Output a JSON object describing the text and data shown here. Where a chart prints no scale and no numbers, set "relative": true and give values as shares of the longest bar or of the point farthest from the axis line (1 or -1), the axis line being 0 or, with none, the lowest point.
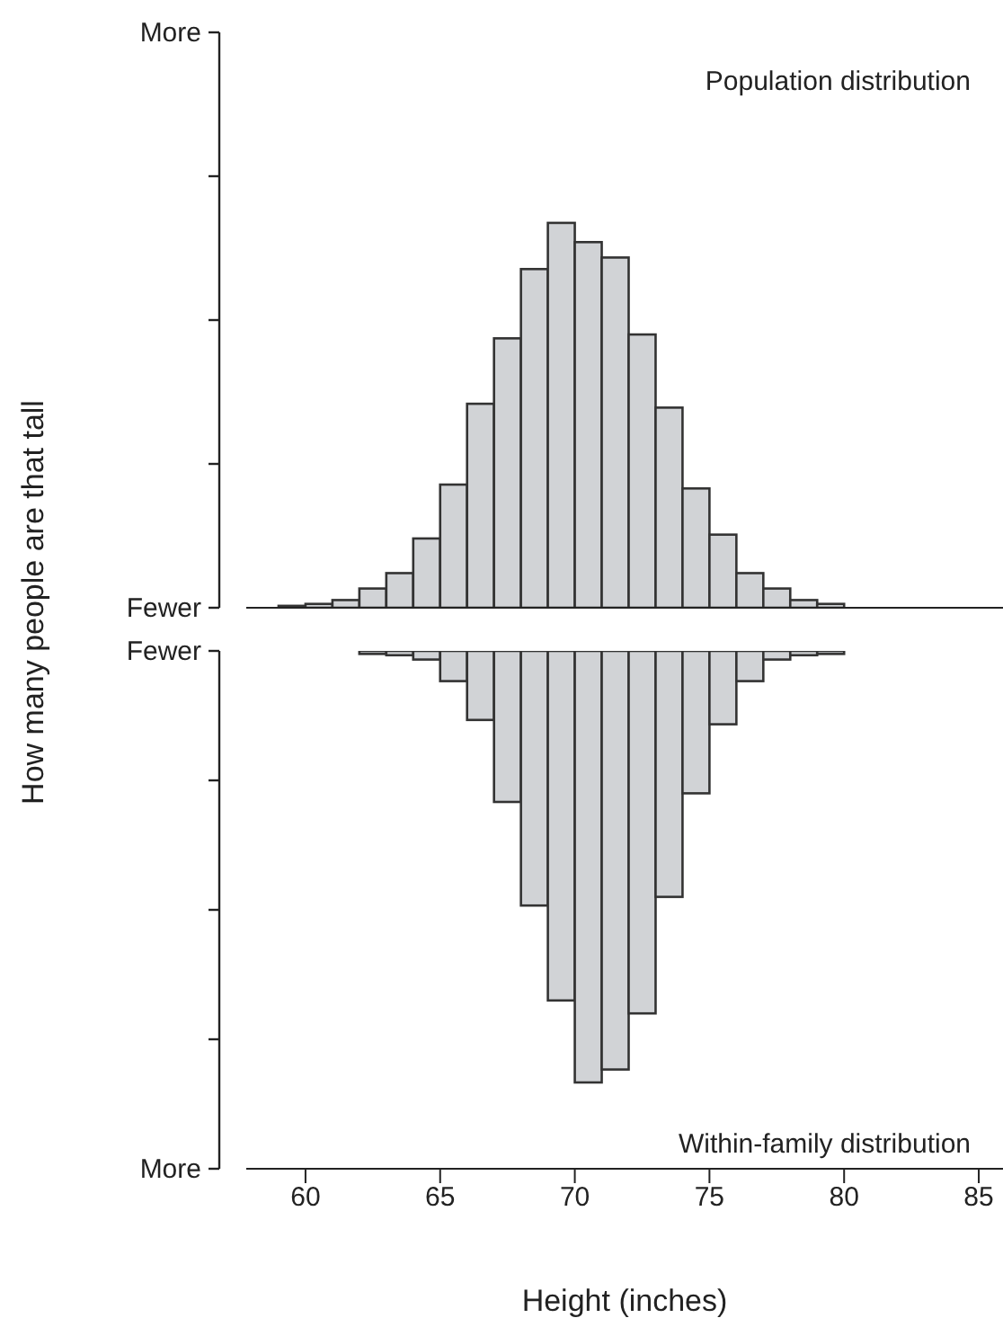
{
  "chart_data": [
    {
      "type": "bar",
      "title": "Population distribution",
      "ylabel": "How many people are that tall",
      "relative": true,
      "tick_labels": false,
      "xlim": [
        57.8,
        85.9
      ],
      "color": "#d1d3d6",
      "annotations": [
        "More",
        "Fewer"
      ],
      "x": [
        59.5,
        60.5,
        61.5,
        62.5,
        63.5,
        64.5,
        65.5,
        66.5,
        67.5,
        68.5,
        69.5,
        70.5,
        71.5,
        72.5,
        73.5,
        74.5,
        75.5,
        76.5,
        77.5,
        78.5,
        79.5
      ],
      "values": [
        0.005,
        0.01,
        0.02,
        0.05,
        0.09,
        0.18,
        0.32,
        0.53,
        0.7,
        0.88,
        1,
        0.95,
        0.91,
        0.71,
        0.52,
        0.31,
        0.19,
        0.09,
        0.05,
        0.02,
        0.01
      ]
    },
    {
      "type": "bar",
      "title": "Within-family distribution",
      "xlabel": "Height (inches)",
      "relative": true,
      "tick_labels": "x",
      "xlim": [
        57.8,
        85.9
      ],
      "xticks": [
        60,
        65,
        70,
        75,
        80,
        85
      ],
      "color": "#d1d3d6",
      "annotations": [
        "Fewer",
        "More"
      ],
      "x": [
        62.5,
        63.5,
        64.5,
        65.5,
        66.5,
        67.5,
        68.5,
        69.5,
        70.5,
        71.5,
        72.5,
        73.5,
        74.5,
        75.5,
        76.5,
        77.5,
        78.5,
        79.5
      ],
      "values": [
        -0.007,
        -0.01,
        -0.02,
        -0.07,
        -0.16,
        -0.35,
        -0.59,
        -0.81,
        -1,
        -0.97,
        -0.84,
        -0.57,
        -0.33,
        -0.17,
        -0.07,
        -0.02,
        -0.01,
        -0.007
      ]
    }
  ]
}
